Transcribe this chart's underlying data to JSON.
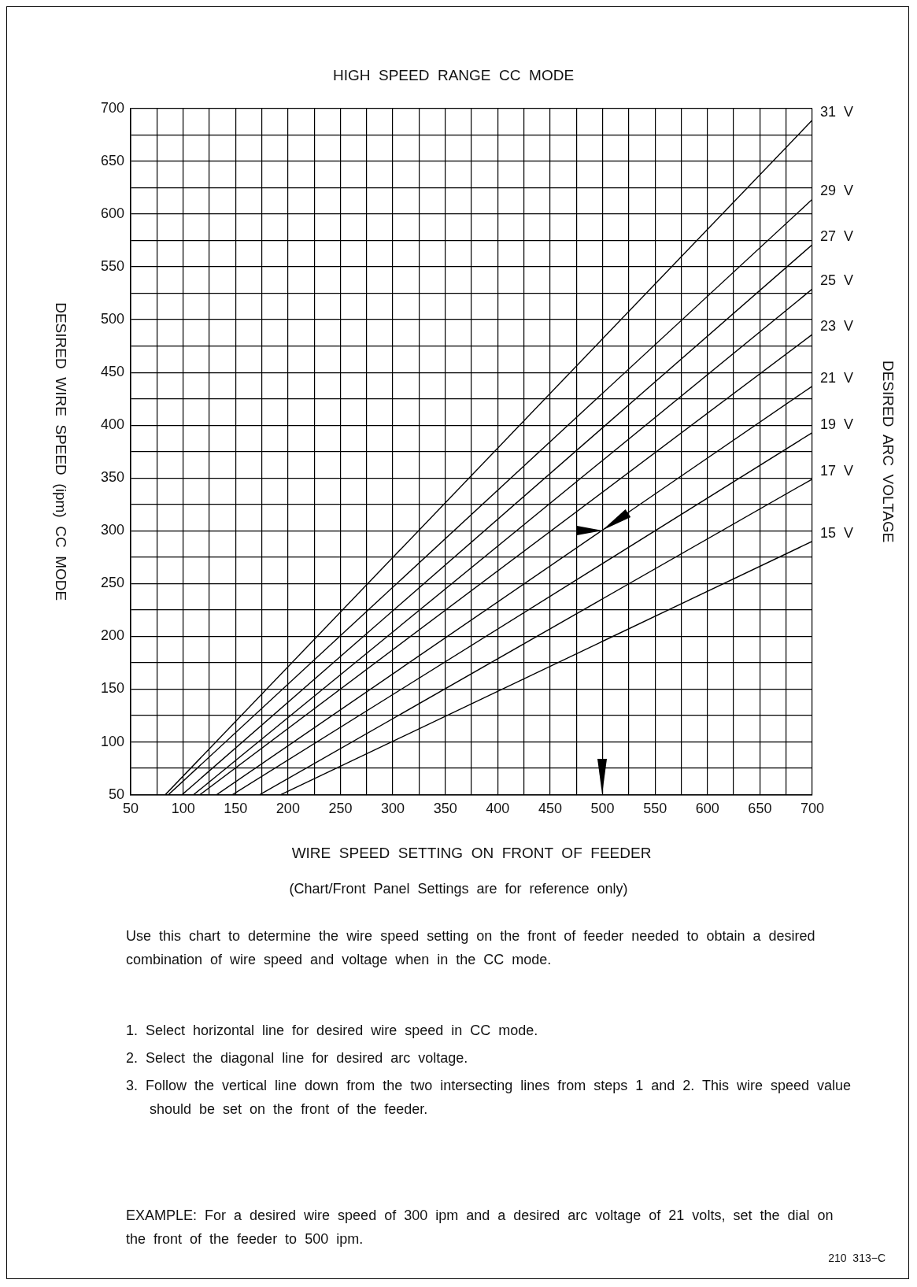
{
  "chart_data": {
    "type": "line",
    "title": "HIGH  SPEED  RANGE  CC  MODE",
    "xlabel": "WIRE  SPEED  SETTING  ON  FRONT  OF  FEEDER",
    "ylabel": "DESIRED  WIRE  SPEED  (ipm)  CC  MODE",
    "y2label": "DESIRED  ARC  VOLTAGE",
    "xlim": [
      50,
      700
    ],
    "ylim": [
      50,
      700
    ],
    "xticks": [
      50,
      {
        "value": 75,
        "label": null
      },
      100,
      {
        "value": 125,
        "label": null
      },
      150,
      {
        "value": 175,
        "label": null
      },
      200,
      {
        "value": 225,
        "label": null
      },
      250,
      {
        "value": 275,
        "label": null
      },
      300,
      {
        "value": 325,
        "label": null
      },
      350,
      {
        "value": 375,
        "label": null
      },
      400,
      {
        "value": 425,
        "label": null
      },
      450,
      {
        "value": 475,
        "label": null
      },
      500,
      {
        "value": 525,
        "label": null
      },
      550,
      {
        "value": 575,
        "label": null
      },
      600,
      {
        "value": 625,
        "label": null
      },
      650,
      {
        "value": 675,
        "label": null
      },
      700
    ],
    "yticks": [
      50,
      {
        "value": 75,
        "label": null
      },
      100,
      {
        "value": 125,
        "label": null
      },
      150,
      {
        "value": 175,
        "label": null
      },
      200,
      {
        "value": 225,
        "label": null
      },
      250,
      {
        "value": 275,
        "label": null
      },
      300,
      {
        "value": 325,
        "label": null
      },
      350,
      {
        "value": 375,
        "label": null
      },
      400,
      {
        "value": 425,
        "label": null
      },
      450,
      {
        "value": 475,
        "label": null
      },
      500,
      {
        "value": 525,
        "label": null
      },
      550,
      {
        "value": 575,
        "label": null
      },
      600,
      {
        "value": 625,
        "label": null
      },
      650,
      {
        "value": 675,
        "label": null
      },
      700
    ],
    "grid": true,
    "legend": false,
    "marker": "none",
    "line_style": "solid",
    "series": [
      {
        "name": "31  V",
        "color": "#000000",
        "x": [
          83,
          700
        ],
        "values": [
          50,
          689
        ]
      },
      {
        "name": "29  V",
        "color": "#000000",
        "x": [
          86,
          700
        ],
        "values": [
          50,
          614
        ]
      },
      {
        "name": "27  V",
        "color": "#000000",
        "x": [
          99,
          700
        ],
        "values": [
          50,
          571
        ]
      },
      {
        "name": "25  V",
        "color": "#000000",
        "x": [
          110,
          700
        ],
        "values": [
          50,
          529
        ]
      },
      {
        "name": "23  V",
        "color": "#000000",
        "x": [
          116,
          700
        ],
        "values": [
          50,
          486
        ]
      },
      {
        "name": "21  V",
        "color": "#000000",
        "x": [
          132,
          700
        ],
        "values": [
          50,
          437
        ]
      },
      {
        "name": "19  V",
        "color": "#000000",
        "x": [
          147,
          700
        ],
        "values": [
          50,
          393
        ]
      },
      {
        "name": "17  V",
        "color": "#000000",
        "x": [
          173,
          700
        ],
        "values": [
          50,
          349
        ]
      },
      {
        "name": "15  V",
        "color": "#000000",
        "x": [
          193,
          700
        ],
        "values": [
          50,
          290
        ]
      }
    ],
    "annotations": [
      "(Chart/Front  Panel  Settings  are  for  reference  only)",
      "Use  this  chart  to  determine  the  wire  speed  setting  on  the  front  of  feeder  needed  to  obtain  a  desired  combination  of  wire  speed  and  voltage  when  in  the  CC  mode.",
      "1.  Select  horizontal  line  for  desired  wire  speed  in  CC  mode.",
      "2.  Select  the  diagonal  line  for  desired  arc  voltage.",
      "3.  Follow  the  vertical  line  down  from  the  two  intersecting  lines  from  steps  1  and  2.  This  wire  speed  value  should  be  set  on  the  front  of  the  feeder.",
      "EXAMPLE:  For  a  desired  wire  speed  of  300  ipm  and  a  desired  arc  voltage  of  21  volts,  set  the  dial  on  the  front  of  the  feeder  to  500  ipm.",
      "210  313−C"
    ]
  }
}
